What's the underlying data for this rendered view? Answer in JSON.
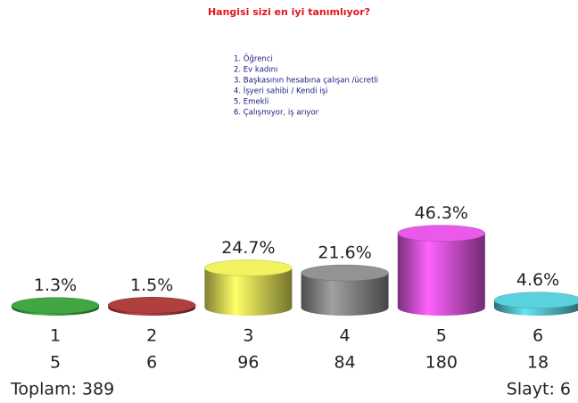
{
  "chart_data": {
    "type": "cylinder_bar",
    "title": "Hangisi sizi en iyi tanımlıyor?",
    "options": [
      "1. Öğrenci",
      "2. Ev kadını",
      "3. Başkasının hesabına çalışan /ücretli",
      "4. İşyeri sahibi / Kendi işi",
      "5. Emekli",
      "6. Çalışmıyor, iş arıyor"
    ],
    "categories": [
      "1",
      "2",
      "3",
      "4",
      "5",
      "6"
    ],
    "values": [
      1.3,
      1.5,
      24.7,
      21.6,
      46.3,
      4.6
    ],
    "value_labels": [
      "1.3%",
      "1.5%",
      "24.7%",
      "21.6%",
      "46.3%",
      "4.6%"
    ],
    "counts": [
      5,
      6,
      96,
      84,
      180,
      18
    ],
    "colors": [
      "#3f9f3f",
      "#a83c3c",
      "#e6e65a",
      "#8c8c8c",
      "#e055e0",
      "#55c8d2"
    ],
    "total_label": "Toplam: 389",
    "slide_label": "Slayt: 6"
  }
}
